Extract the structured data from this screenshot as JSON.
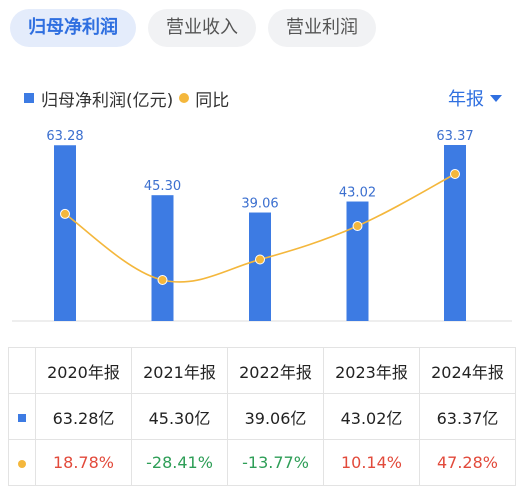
{
  "tabs": [
    {
      "label": "归母净利润",
      "active": true
    },
    {
      "label": "营业收入",
      "active": false
    },
    {
      "label": "营业利润",
      "active": false
    }
  ],
  "legend": {
    "bar_label": "归母净利润(亿元)",
    "line_label": "同比"
  },
  "period_selector": "年报",
  "colors": {
    "bar": "#3d7be3",
    "line": "#f4b73c",
    "up": "#e24a3b",
    "down": "#2e9e57"
  },
  "chart_data": {
    "type": "bar",
    "categories": [
      "2020年报",
      "2021年报",
      "2022年报",
      "2023年报",
      "2024年报"
    ],
    "series": [
      {
        "name": "归母净利润(亿元)",
        "type": "bar",
        "values": [
          63.28,
          45.3,
          39.06,
          43.02,
          63.37
        ],
        "labels": [
          "63.28",
          "45.30",
          "39.06",
          "43.02",
          "63.37"
        ]
      },
      {
        "name": "同比",
        "type": "line",
        "values": [
          18.78,
          -28.41,
          -13.77,
          10.14,
          47.28
        ]
      }
    ],
    "ylim": [
      0,
      63.37
    ],
    "grid": false,
    "legend_position": "top-left"
  },
  "table": {
    "headers": [
      "2020年报",
      "2021年报",
      "2022年报",
      "2023年报",
      "2024年报"
    ],
    "values": [
      "63.28亿",
      "45.30亿",
      "39.06亿",
      "43.02亿",
      "63.37亿"
    ],
    "yoy": [
      "18.78%",
      "-28.41%",
      "-13.77%",
      "10.14%",
      "47.28%"
    ]
  }
}
